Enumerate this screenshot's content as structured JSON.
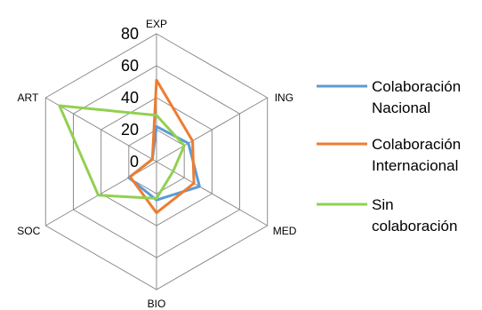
{
  "chart_data": {
    "type": "radar",
    "categories": [
      "EXP",
      "ING",
      "MED",
      "BIO",
      "SOC",
      "ART"
    ],
    "r_ticks": [
      "0",
      "20",
      "40",
      "60",
      "80"
    ],
    "r_range": [
      0,
      80
    ],
    "grid": true,
    "legend_position": "right",
    "series": [
      {
        "name_lines": [
          "Colaboración",
          "Nacional"
        ],
        "color": "#5b9bd5",
        "values": [
          22,
          23,
          31,
          24,
          20,
          3
        ]
      },
      {
        "name_lines": [
          "Colaboración",
          "Internacional"
        ],
        "color": "#ed7d31",
        "values": [
          51,
          26,
          27,
          32,
          19,
          3
        ]
      },
      {
        "name_lines": [
          "Sin",
          "colaboración"
        ],
        "color": "#92d050",
        "values": [
          29,
          20,
          12,
          23,
          42,
          70
        ]
      }
    ]
  }
}
